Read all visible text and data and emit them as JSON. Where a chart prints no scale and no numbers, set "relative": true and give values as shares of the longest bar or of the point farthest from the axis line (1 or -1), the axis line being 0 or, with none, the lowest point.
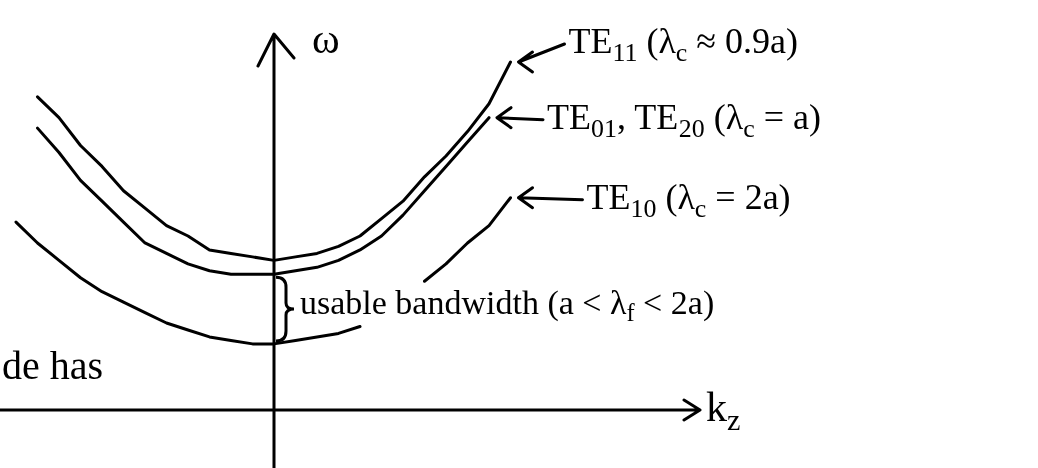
{
  "chart_data": {
    "type": "line",
    "relative": true,
    "xlabel": "k$_{z}$",
    "ylabel": "ω",
    "legend": "right",
    "marker": "none",
    "line_style": "solid",
    "categories": [
      null,
      null,
      null,
      null,
      null,
      null,
      null,
      null,
      null,
      null,
      null,
      null,
      null,
      null,
      null,
      null,
      null,
      null,
      null,
      null,
      null,
      null,
      null,
      null,
      null
    ],
    "series": [
      {
        "name": "TE$_{11}$ (λ$_{c}$ ≈ 0.9a)",
        "color": "#000000",
        "values": [
          null,
          0.9,
          0.84,
          0.76,
          0.7,
          0.63,
          0.58,
          0.53,
          0.5,
          0.46,
          0.45,
          0.44,
          0.43,
          0.44,
          0.45,
          0.47,
          0.5,
          0.55,
          0.6,
          0.67,
          0.73,
          0.8,
          0.88,
          1,
          null
        ]
      },
      {
        "name": "TE$_{01}$, TE$_{20}$ (λ$_{c}$ = a)",
        "color": "#000000",
        "values": [
          null,
          0.81,
          0.74,
          0.66,
          0.6,
          0.54,
          0.48,
          0.45,
          0.42,
          0.4,
          0.39,
          0.39,
          0.39,
          0.4,
          0.41,
          0.43,
          0.46,
          0.5,
          0.56,
          0.63,
          0.7,
          0.77,
          0.84,
          null,
          null
        ]
      },
      {
        "name": "TE$_{10}$ (λ$_{c}$ = 2a)",
        "color": "#000000",
        "values": [
          0.54,
          0.48,
          0.43,
          0.38,
          0.34,
          0.31,
          0.28,
          0.25,
          0.23,
          0.21,
          0.2,
          0.19,
          0.19,
          0.2,
          0.21,
          0.22,
          0.24,
          null,
          null,
          0.37,
          0.42,
          0.48,
          0.53,
          0.61,
          null
        ]
      }
    ],
    "annotations": [
      "usable bandwidth (a < λ$_{f}$ < 2a)",
      "de has"
    ]
  }
}
